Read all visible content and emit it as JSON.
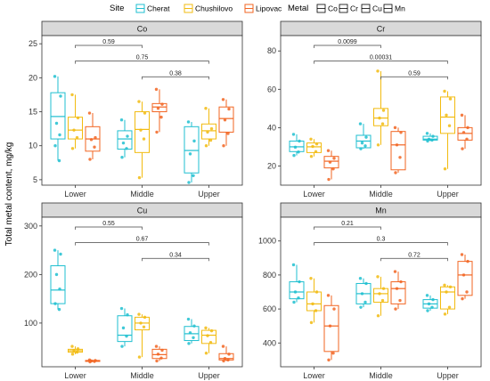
{
  "chart_data": {
    "type": "box",
    "ylabel": "Total metal content, mg/kg",
    "categories": [
      "Lower",
      "Middle",
      "Upper"
    ],
    "legend_site": {
      "title": "Site",
      "items": [
        {
          "name": "Cherat",
          "color": "#1fbfd0"
        },
        {
          "name": "Chushilovo",
          "color": "#f2bb10"
        },
        {
          "name": "Lipovac",
          "color": "#f26522"
        }
      ]
    },
    "legend_metal": {
      "title": "Metal",
      "items": [
        "Co",
        "Cr",
        "Cu",
        "Mn"
      ]
    },
    "panels": [
      {
        "metal": "Co",
        "ylim": [
          4.2,
          26.2
        ],
        "yticks": [
          5,
          10,
          15,
          20,
          25
        ],
        "boxes": {
          "Lower": [
            {
              "site": "Cherat",
              "min": 7.8,
              "q1": 11.0,
              "median": 14.3,
              "q3": 17.8,
              "max": 20.2,
              "points": [
                20.2,
                17.3,
                13.3,
                11.6,
                10.0,
                7.8
              ]
            },
            {
              "site": "Chushilovo",
              "min": 9.6,
              "q1": 11.0,
              "median": 12.3,
              "q3": 14.2,
              "max": 17.5,
              "points": [
                17.5,
                14.1,
                12.3,
                11.2,
                9.6
              ]
            },
            {
              "site": "Lipovac",
              "min": 8.0,
              "q1": 9.2,
              "median": 11.0,
              "q3": 12.8,
              "max": 14.8,
              "points": [
                14.8,
                11.2,
                10.9,
                9.8,
                8.0
              ]
            }
          ],
          "Middle": [
            {
              "site": "Cherat",
              "min": 8.3,
              "q1": 9.5,
              "median": 11.0,
              "q3": 12.2,
              "max": 13.8,
              "points": [
                13.8,
                11.4,
                10.4,
                9.6,
                8.3
              ]
            },
            {
              "site": "Chushilovo",
              "min": 5.3,
              "q1": 9.0,
              "median": 12.4,
              "q3": 15.0,
              "max": 16.5,
              "points": [
                16.5,
                14.8,
                12.3,
                11.0,
                5.3
              ]
            },
            {
              "site": "Lipovac",
              "min": 12.0,
              "q1": 15.0,
              "median": 15.7,
              "q3": 16.2,
              "max": 18.3,
              "points": [
                18.3,
                16.1,
                15.5,
                14.2,
                12.0
              ]
            }
          ],
          "Upper": [
            {
              "site": "Cherat",
              "min": 4.6,
              "q1": 6.0,
              "median": 9.3,
              "q3": 12.8,
              "max": 13.5,
              "points": [
                13.5,
                10.7,
                8.8,
                5.6,
                4.6
              ]
            },
            {
              "site": "Chushilovo",
              "min": 10.0,
              "q1": 11.0,
              "median": 12.2,
              "q3": 13.2,
              "max": 15.5,
              "points": [
                15.5,
                12.5,
                12.0,
                10.8,
                10.0
              ]
            },
            {
              "site": "Lipovac",
              "min": 10.0,
              "q1": 12.0,
              "median": 14.0,
              "q3": 15.7,
              "max": 16.8,
              "points": [
                16.8,
                15.4,
                13.8,
                11.8,
                10.0
              ]
            }
          ]
        },
        "comparisons": [
          {
            "from": "Lower",
            "to": "Middle",
            "label": "0.59"
          },
          {
            "from": "Lower",
            "to": "Upper",
            "label": "0.75"
          },
          {
            "from": "Middle",
            "to": "Upper",
            "label": "0.38"
          }
        ]
      },
      {
        "metal": "Cr",
        "ylim": [
          10,
          88
        ],
        "yticks": [
          20,
          40,
          60,
          80
        ],
        "boxes": {
          "Lower": [
            {
              "site": "Cherat",
              "min": 25.5,
              "q1": 27.5,
              "median": 30.0,
              "q3": 33.0,
              "max": 36.5,
              "points": [
                36.5,
                33.0,
                29.8,
                27.3,
                25.5
              ]
            },
            {
              "site": "Chushilovo",
              "min": 25.0,
              "q1": 27.0,
              "median": 30.0,
              "q3": 32.0,
              "max": 34.0,
              "points": [
                34.0,
                31.5,
                30.2,
                27.5,
                25.0
              ]
            },
            {
              "site": "Lipovac",
              "min": 13.0,
              "q1": 19.0,
              "median": 22.5,
              "q3": 25.0,
              "max": 28.0,
              "points": [
                28.0,
                24.0,
                22.0,
                18.5,
                13.0
              ]
            }
          ],
          "Middle": [
            {
              "site": "Cherat",
              "min": 29.0,
              "q1": 29.5,
              "median": 33.0,
              "q3": 36.0,
              "max": 42.0,
              "points": [
                42.0,
                35.0,
                32.0,
                30.5,
                29.0
              ]
            },
            {
              "site": "Chushilovo",
              "min": 31.0,
              "q1": 41.0,
              "median": 45.0,
              "q3": 50.0,
              "max": 69.5,
              "points": [
                69.5,
                49.0,
                45.0,
                42.0,
                31.0
              ]
            },
            {
              "site": "Lipovac",
              "min": 16.5,
              "q1": 18.0,
              "median": 31.0,
              "q3": 38.0,
              "max": 40.0,
              "points": [
                40.0,
                37.5,
                31.0,
                24.5,
                16.5
              ]
            }
          ],
          "Upper": [
            {
              "site": "Cherat",
              "min": 33.0,
              "q1": 33.5,
              "median": 34.0,
              "q3": 35.5,
              "max": 37.0,
              "points": [
                37.0,
                35.5,
                34.0,
                33.5,
                33.0
              ]
            },
            {
              "site": "Chushilovo",
              "min": 18.5,
              "q1": 37.0,
              "median": 45.5,
              "q3": 56.0,
              "max": 59.0,
              "points": [
                59.0,
                55.0,
                46.5,
                41.0,
                18.5
              ]
            },
            {
              "site": "Lipovac",
              "min": 29.0,
              "q1": 33.5,
              "median": 37.0,
              "q3": 40.0,
              "max": 46.5,
              "points": [
                46.5,
                40.0,
                37.5,
                34.0,
                29.0
              ]
            }
          ]
        },
        "comparisons": [
          {
            "from": "Lower",
            "to": "Middle",
            "label": "0.0099"
          },
          {
            "from": "Lower",
            "to": "Upper",
            "label": "0.00031"
          },
          {
            "from": "Middle",
            "to": "Upper",
            "label": "0.59"
          }
        ]
      },
      {
        "metal": "Cu",
        "ylim": [
          10,
          318
        ],
        "yticks": [
          100,
          200,
          300
        ],
        "boxes": {
          "Lower": [
            {
              "site": "Cherat",
              "min": 128,
              "q1": 140,
              "median": 168,
              "q3": 218,
              "max": 250,
              "points": [
                250,
                242,
                200,
                170,
                140,
                128
              ]
            },
            {
              "site": "Chushilovo",
              "min": 36,
              "q1": 40,
              "median": 43,
              "q3": 46,
              "max": 52,
              "points": [
                52,
                47,
                43,
                40,
                36
              ]
            },
            {
              "site": "Lipovac",
              "min": 20,
              "q1": 21,
              "median": 22,
              "q3": 23,
              "max": 24,
              "points": [
                24,
                23,
                22,
                21,
                20
              ]
            }
          ],
          "Middle": [
            {
              "site": "Cherat",
              "min": 52,
              "q1": 62,
              "median": 75,
              "q3": 115,
              "max": 130,
              "points": [
                130,
                117,
                90,
                73,
                52
              ]
            },
            {
              "site": "Chushilovo",
              "min": 30,
              "q1": 86,
              "median": 100,
              "q3": 112,
              "max": 118,
              "points": [
                118,
                112,
                100,
                92,
                30
              ]
            },
            {
              "site": "Lipovac",
              "min": 22,
              "q1": 27,
              "median": 35,
              "q3": 46,
              "max": 52,
              "points": [
                52,
                44,
                36,
                28,
                22
              ]
            }
          ],
          "Upper": [
            {
              "site": "Cherat",
              "min": 58,
              "q1": 64,
              "median": 78,
              "q3": 93,
              "max": 108,
              "points": [
                108,
                94,
                80,
                70,
                58
              ]
            },
            {
              "site": "Chushilovo",
              "min": 38,
              "q1": 58,
              "median": 75,
              "q3": 85,
              "max": 90,
              "points": [
                90,
                84,
                74,
                60,
                38
              ]
            },
            {
              "site": "Lipovac",
              "min": 22,
              "q1": 24,
              "median": 27,
              "q3": 37,
              "max": 52,
              "points": [
                52,
                36,
                27,
                24,
                22
              ]
            }
          ]
        },
        "comparisons": [
          {
            "from": "Lower",
            "to": "Middle",
            "label": "0.55"
          },
          {
            "from": "Lower",
            "to": "Upper",
            "label": "0.67"
          },
          {
            "from": "Middle",
            "to": "Upper",
            "label": "0.34"
          }
        ]
      },
      {
        "metal": "Mn",
        "ylim": [
          260,
          1140
        ],
        "yticks": [
          400,
          600,
          800,
          1000
        ],
        "boxes": {
          "Lower": [
            {
              "site": "Cherat",
              "min": 640,
              "q1": 660,
              "median": 700,
              "q3": 760,
              "max": 860,
              "points": [
                860,
                760,
                700,
                665,
                640
              ]
            },
            {
              "site": "Chushilovo",
              "min": 520,
              "q1": 590,
              "median": 630,
              "q3": 700,
              "max": 780,
              "points": [
                780,
                700,
                630,
                590,
                520
              ]
            },
            {
              "site": "Lipovac",
              "min": 300,
              "q1": 350,
              "median": 500,
              "q3": 620,
              "max": 680,
              "points": [
                680,
                600,
                500,
                340,
                300
              ]
            }
          ],
          "Middle": [
            {
              "site": "Cherat",
              "min": 610,
              "q1": 630,
              "median": 690,
              "q3": 750,
              "max": 780,
              "points": [
                780,
                750,
                690,
                640,
                610
              ]
            },
            {
              "site": "Chushilovo",
              "min": 560,
              "q1": 640,
              "median": 690,
              "q3": 720,
              "max": 790,
              "points": [
                790,
                720,
                690,
                650,
                560
              ]
            },
            {
              "site": "Lipovac",
              "min": 600,
              "q1": 630,
              "median": 720,
              "q3": 760,
              "max": 820,
              "points": [
                820,
                760,
                720,
                650,
                600
              ]
            }
          ],
          "Upper": [
            {
              "site": "Cherat",
              "min": 590,
              "q1": 605,
              "median": 630,
              "q3": 655,
              "max": 680,
              "points": [
                680,
                655,
                630,
                610,
                590
              ]
            },
            {
              "site": "Chushilovo",
              "min": 570,
              "q1": 600,
              "median": 700,
              "q3": 730,
              "max": 740,
              "points": [
                740,
                730,
                700,
                610,
                570
              ]
            },
            {
              "site": "Lipovac",
              "min": 660,
              "q1": 680,
              "median": 800,
              "q3": 880,
              "max": 920,
              "points": [
                920,
                880,
                800,
                700,
                660
              ]
            }
          ]
        },
        "comparisons": [
          {
            "from": "Lower",
            "to": "Middle",
            "label": "0.21"
          },
          {
            "from": "Lower",
            "to": "Upper",
            "label": "0.3"
          },
          {
            "from": "Middle",
            "to": "Upper",
            "label": "0.72"
          }
        ]
      }
    ]
  }
}
